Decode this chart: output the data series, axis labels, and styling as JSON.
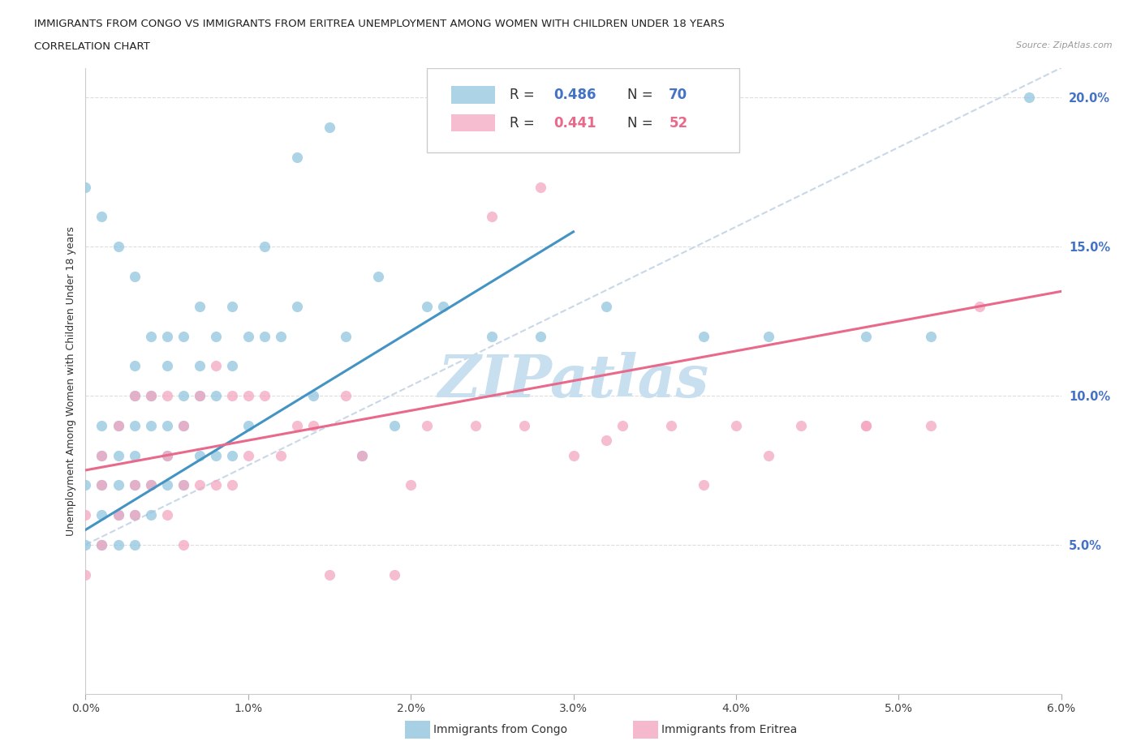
{
  "title_line1": "IMMIGRANTS FROM CONGO VS IMMIGRANTS FROM ERITREA UNEMPLOYMENT AMONG WOMEN WITH CHILDREN UNDER 18 YEARS",
  "title_line2": "CORRELATION CHART",
  "source_text": "Source: ZipAtlas.com",
  "ylabel": "Unemployment Among Women with Children Under 18 years",
  "xlim": [
    0.0,
    0.06
  ],
  "ylim": [
    0.0,
    0.21
  ],
  "xticks": [
    0.0,
    0.01,
    0.02,
    0.03,
    0.04,
    0.05,
    0.06
  ],
  "yticks": [
    0.0,
    0.05,
    0.1,
    0.15,
    0.2
  ],
  "xtick_labels": [
    "0.0%",
    "1.0%",
    "2.0%",
    "3.0%",
    "4.0%",
    "5.0%",
    "6.0%"
  ],
  "ytick_labels": [
    "",
    "5.0%",
    "10.0%",
    "15.0%",
    "20.0%"
  ],
  "legend_r1": "0.486",
  "legend_n1": "70",
  "legend_r2": "0.441",
  "legend_n2": "52",
  "color_congo": "#92c5de",
  "color_eritrea": "#f4a6c0",
  "color_trendline_congo": "#4393c3",
  "color_trendline_eritrea": "#e8698a",
  "color_refline": "#c8d8e8",
  "watermark_text": "ZIPatlas",
  "watermark_color": "#c8dff0",
  "ytick_color": "#4472c4",
  "congo_x": [
    0.0,
    0.0,
    0.001,
    0.001,
    0.001,
    0.001,
    0.001,
    0.002,
    0.002,
    0.002,
    0.002,
    0.002,
    0.003,
    0.003,
    0.003,
    0.003,
    0.003,
    0.003,
    0.004,
    0.004,
    0.004,
    0.004,
    0.005,
    0.005,
    0.005,
    0.005,
    0.006,
    0.006,
    0.006,
    0.007,
    0.007,
    0.007,
    0.008,
    0.008,
    0.009,
    0.009,
    0.01,
    0.01,
    0.011,
    0.012,
    0.013,
    0.014,
    0.016,
    0.017,
    0.019,
    0.021,
    0.0,
    0.001,
    0.002,
    0.003,
    0.003,
    0.004,
    0.005,
    0.006,
    0.007,
    0.008,
    0.009,
    0.011,
    0.013,
    0.015,
    0.018,
    0.022,
    0.025,
    0.028,
    0.032,
    0.038,
    0.042,
    0.048,
    0.052,
    0.058
  ],
  "congo_y": [
    0.07,
    0.05,
    0.09,
    0.08,
    0.07,
    0.06,
    0.05,
    0.09,
    0.08,
    0.07,
    0.06,
    0.05,
    0.1,
    0.09,
    0.08,
    0.07,
    0.06,
    0.05,
    0.1,
    0.09,
    0.07,
    0.06,
    0.11,
    0.09,
    0.08,
    0.07,
    0.1,
    0.09,
    0.07,
    0.11,
    0.1,
    0.08,
    0.1,
    0.08,
    0.11,
    0.08,
    0.12,
    0.09,
    0.12,
    0.12,
    0.13,
    0.1,
    0.12,
    0.08,
    0.09,
    0.13,
    0.17,
    0.16,
    0.15,
    0.14,
    0.11,
    0.12,
    0.12,
    0.12,
    0.13,
    0.12,
    0.13,
    0.15,
    0.18,
    0.19,
    0.14,
    0.13,
    0.12,
    0.12,
    0.13,
    0.12,
    0.12,
    0.12,
    0.12,
    0.2
  ],
  "eritrea_x": [
    0.0,
    0.0,
    0.001,
    0.001,
    0.001,
    0.002,
    0.002,
    0.003,
    0.003,
    0.003,
    0.004,
    0.004,
    0.005,
    0.005,
    0.005,
    0.006,
    0.006,
    0.006,
    0.007,
    0.007,
    0.008,
    0.008,
    0.009,
    0.009,
    0.01,
    0.01,
    0.011,
    0.012,
    0.013,
    0.014,
    0.015,
    0.016,
    0.017,
    0.019,
    0.02,
    0.021,
    0.024,
    0.027,
    0.03,
    0.033,
    0.036,
    0.04,
    0.044,
    0.048,
    0.052,
    0.025,
    0.028,
    0.032,
    0.038,
    0.042,
    0.048,
    0.055
  ],
  "eritrea_y": [
    0.06,
    0.04,
    0.08,
    0.07,
    0.05,
    0.09,
    0.06,
    0.1,
    0.07,
    0.06,
    0.1,
    0.07,
    0.1,
    0.08,
    0.06,
    0.09,
    0.07,
    0.05,
    0.1,
    0.07,
    0.11,
    0.07,
    0.1,
    0.07,
    0.1,
    0.08,
    0.1,
    0.08,
    0.09,
    0.09,
    0.04,
    0.1,
    0.08,
    0.04,
    0.07,
    0.09,
    0.09,
    0.09,
    0.08,
    0.09,
    0.09,
    0.09,
    0.09,
    0.09,
    0.09,
    0.16,
    0.17,
    0.085,
    0.07,
    0.08,
    0.09,
    0.13
  ],
  "congo_trendline_x0": 0.0,
  "congo_trendline_x1": 0.03,
  "congo_trendline_y0": 0.055,
  "congo_trendline_y1": 0.155,
  "eritrea_trendline_x0": 0.0,
  "eritrea_trendline_x1": 0.06,
  "eritrea_trendline_y0": 0.075,
  "eritrea_trendline_y1": 0.135,
  "refline_x0": 0.0,
  "refline_y0": 0.05,
  "refline_x1": 0.06,
  "refline_y1": 0.21
}
